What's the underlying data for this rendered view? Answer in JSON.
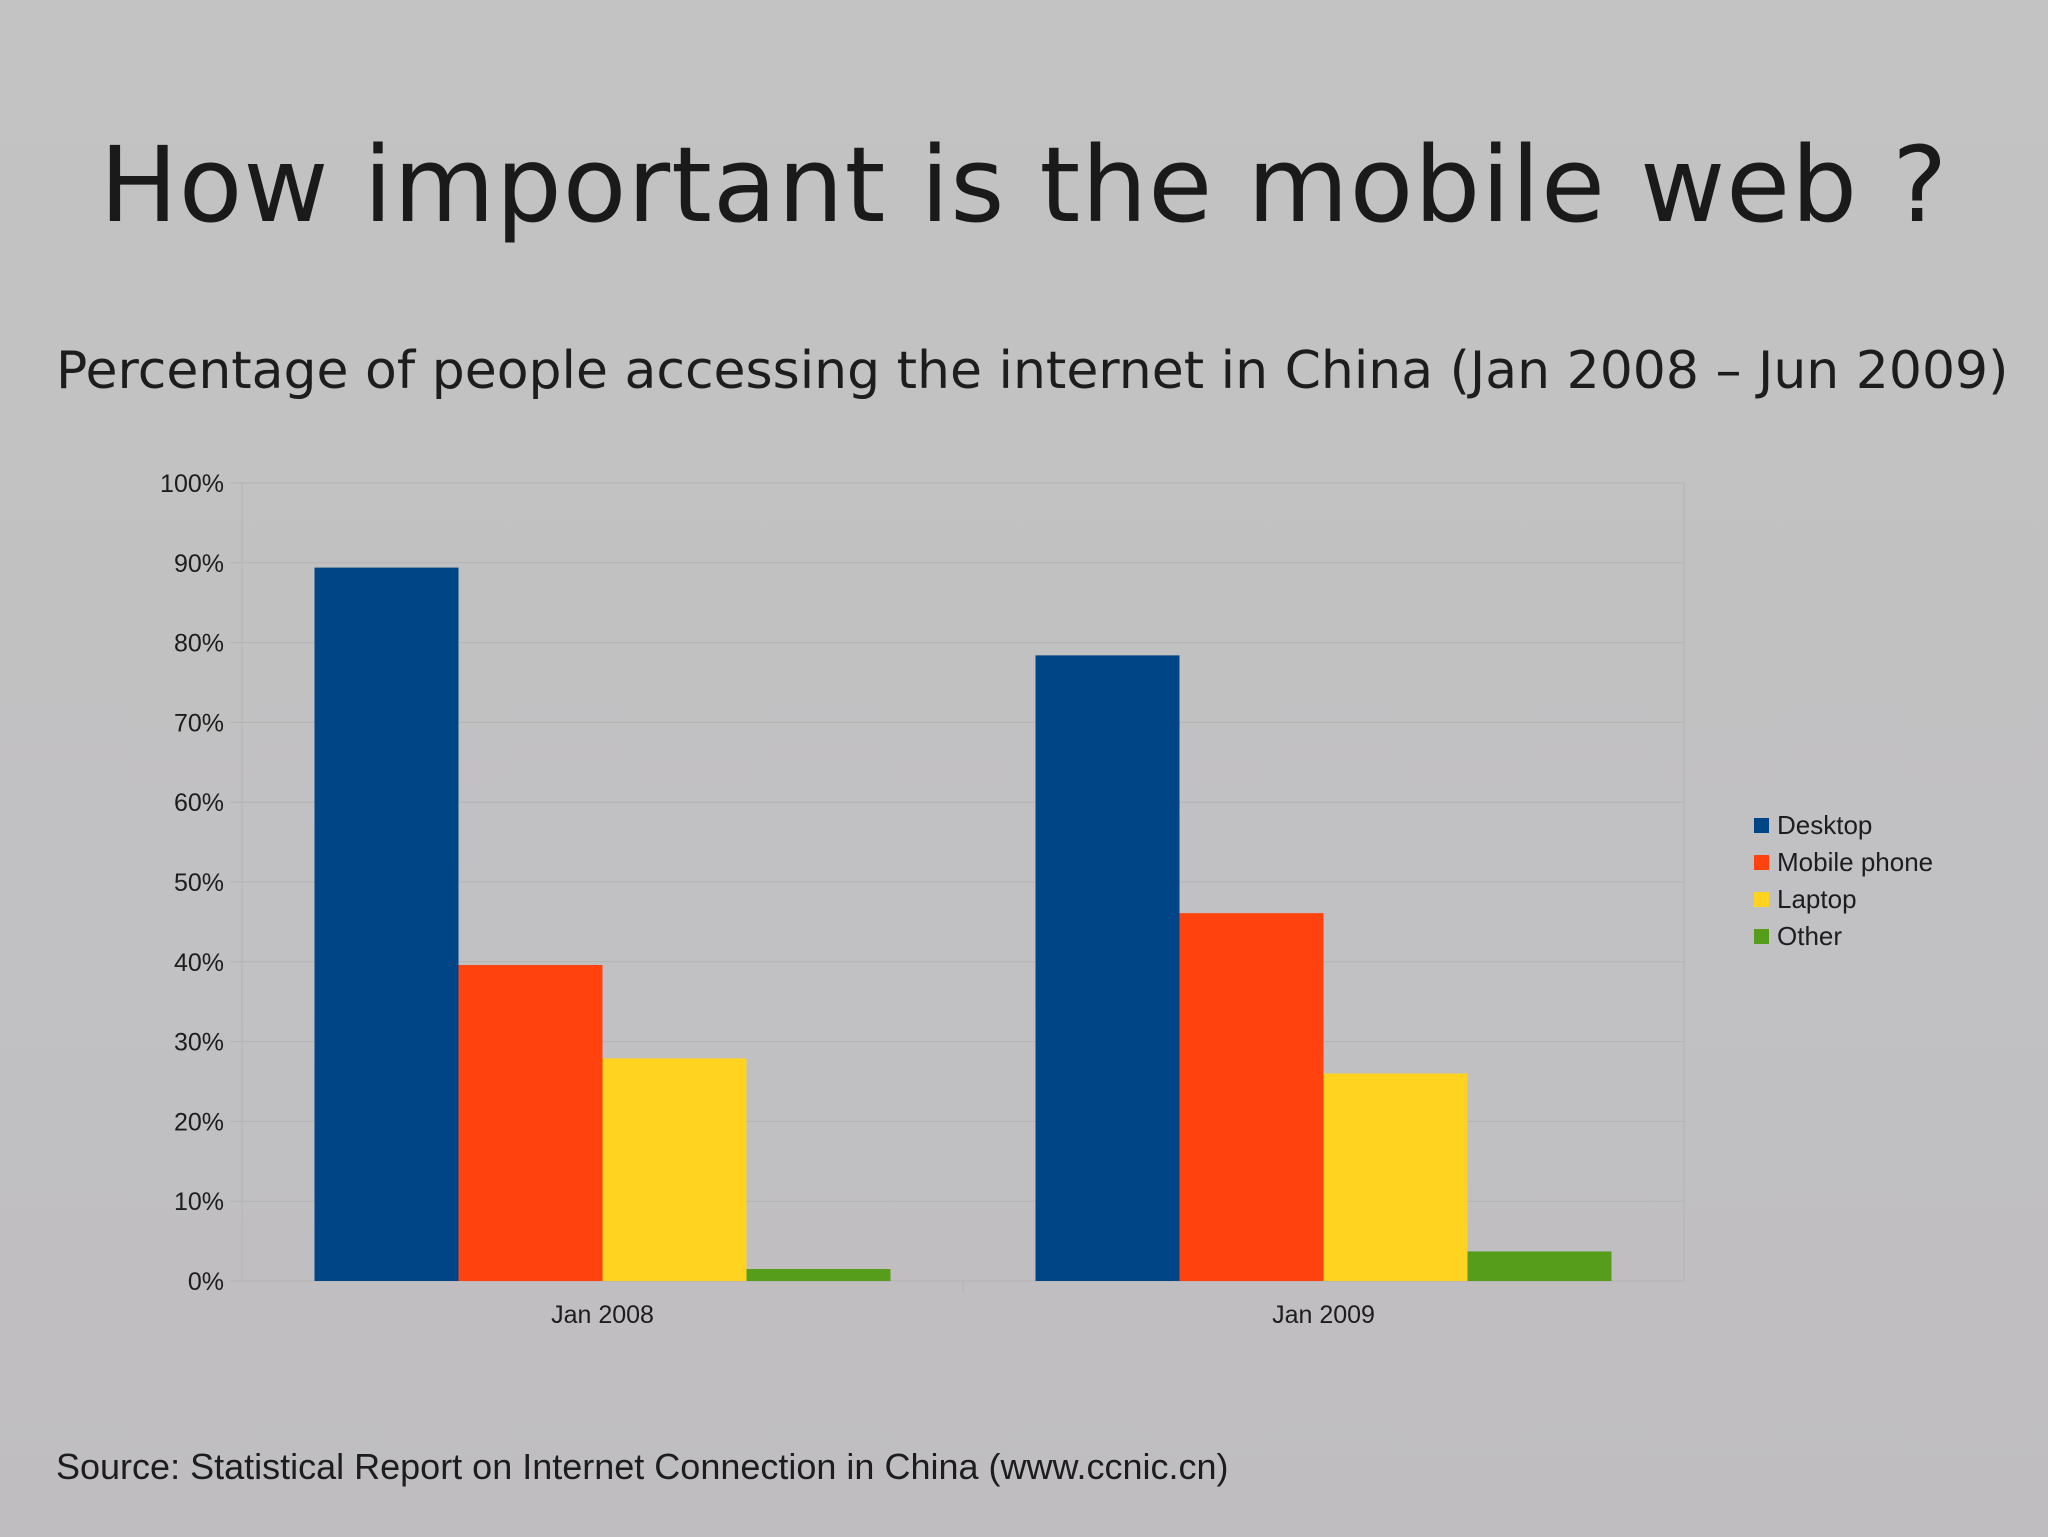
{
  "slide": {
    "title": "How important is the mobile web ?",
    "subtitle": "Percentage of people accessing the internet in China (Jan 2008 – Jun 2009)",
    "source": "Source: Statistical Report on Internet Connection in China (www.ccnic.cn)"
  },
  "chart_data": {
    "type": "bar",
    "categories": [
      "Jan 2008",
      "Jan 2009"
    ],
    "series": [
      {
        "name": "Desktop",
        "color": "#004586",
        "values": [
          89.4,
          78.4
        ]
      },
      {
        "name": "Mobile phone",
        "color": "#ff420e",
        "values": [
          39.6,
          46.1
        ]
      },
      {
        "name": "Laptop",
        "color": "#ffd320",
        "values": [
          27.9,
          26.0
        ]
      },
      {
        "name": "Other",
        "color": "#579d1c",
        "values": [
          1.5,
          3.7
        ]
      }
    ],
    "yticks": [
      "0%",
      "10%",
      "20%",
      "30%",
      "40%",
      "50%",
      "60%",
      "70%",
      "80%",
      "90%",
      "100%"
    ],
    "ylim": [
      0,
      100
    ],
    "grid": true,
    "legend": "right"
  }
}
